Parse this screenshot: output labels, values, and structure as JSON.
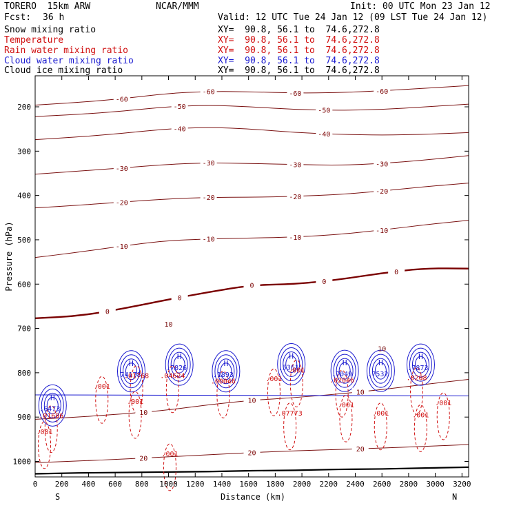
{
  "header": {
    "model": "TORERO  15km ARW",
    "org": "NCAR/MMM",
    "init": "Init: 00 UTC Mon 23 Jan 12",
    "fcst_label": "Fcst:",
    "fcst_value": "36 h",
    "valid": "Valid: 12 UTC Tue 24 Jan 12 (09 LST Tue 24 Jan 12)"
  },
  "legend": [
    {
      "name": "Snow mixing ratio",
      "xy": "XY=  90.8, 56.1 to  74.6,272.8",
      "color": "#000000"
    },
    {
      "name": "Temperature",
      "xy": "XY=  90.8, 56.1 to  74.6,272.8",
      "color": "#d01010"
    },
    {
      "name": "Rain water mixing ratio",
      "xy": "XY=  90.8, 56.1 to  74.6,272.8",
      "color": "#d01010"
    },
    {
      "name": "Cloud water mixing ratio",
      "xy": "XY=  90.8, 56.1 to  74.6,272.8",
      "color": "#1a1ad0"
    },
    {
      "name": "Cloud ice mixing ratio",
      "xy": "XY=  90.8, 56.1 to  74.6,272.8",
      "color": "#000000"
    }
  ],
  "chart_data": {
    "type": "cross-section contour",
    "xlabel": "Distance (km)",
    "ylabel": "Pressure (hPa)",
    "x_ticks": [
      0,
      200,
      400,
      600,
      800,
      1000,
      1200,
      1400,
      1600,
      1800,
      2000,
      2200,
      2400,
      2600,
      2800,
      3000,
      3200
    ],
    "y_ticks": [
      200,
      300,
      400,
      500,
      600,
      700,
      800,
      900,
      1000
    ],
    "xlim": [
      0,
      3250
    ],
    "ylim": [
      1035,
      130
    ],
    "left_endpoint": "S",
    "right_endpoint": "N",
    "temperature_contours": [
      {
        "value": -60,
        "pressures": [
          196,
          190,
          182,
          170,
          165,
          166,
          169,
          168,
          164,
          158,
          152
        ],
        "labels": [
          "-60",
          "-60",
          "-60",
          "-60"
        ]
      },
      {
        "value": -50,
        "pressures": [
          222,
          217,
          210,
          200,
          196,
          200,
          206,
          208,
          206,
          200,
          194
        ],
        "labels": [
          "-50",
          "-50"
        ]
      },
      {
        "value": -40,
        "pressures": [
          274,
          268,
          260,
          250,
          246,
          250,
          258,
          262,
          264,
          262,
          258
        ],
        "labels": [
          "-40",
          "-40"
        ]
      },
      {
        "value": -30,
        "pressures": [
          352,
          345,
          338,
          330,
          326,
          328,
          330,
          332,
          328,
          320,
          310
        ],
        "labels": [
          "-30",
          "-30",
          "-30",
          "-30"
        ]
      },
      {
        "value": -20,
        "pressures": [
          428,
          422,
          415,
          408,
          404,
          404,
          402,
          398,
          390,
          380,
          372
        ],
        "labels": [
          "-20",
          "-20",
          "-20",
          "-20"
        ]
      },
      {
        "value": -10,
        "pressures": [
          540,
          528,
          514,
          502,
          498,
          496,
          494,
          488,
          478,
          466,
          456
        ],
        "labels": [
          "-10",
          "-10",
          "-10",
          "-10"
        ]
      },
      {
        "value": 0,
        "pressures": [
          677,
          672,
          656,
          636,
          618,
          602,
          600,
          590,
          575,
          564,
          565
        ],
        "labels": [
          "0",
          "0",
          "0",
          "0",
          "0"
        ]
      },
      {
        "value": 10,
        "pressures": [
          905,
          900,
          893,
          885,
          872,
          862,
          856,
          848,
          838,
          826,
          815
        ],
        "labels": [
          "10",
          "10",
          "10"
        ]
      },
      {
        "value": 20,
        "pressures": [
          1003,
          999,
          995,
          990,
          985,
          980,
          976,
          973,
          970,
          966,
          962
        ],
        "labels": [
          "20",
          "20",
          "20"
        ]
      }
    ],
    "cloud_water_labels": [
      {
        "text": ".6473",
        "x": 110,
        "p": 880
      },
      {
        "text": ".74178",
        "x": 700,
        "p": 803
      },
      {
        "text": ".7826",
        "x": 1060,
        "p": 788
      },
      {
        "text": ".1893",
        "x": 1410,
        "p": 803
      },
      {
        "text": ".5361",
        "x": 1900,
        "p": 787
      },
      {
        "text": ".7049",
        "x": 2300,
        "p": 802
      },
      {
        "text": ".7532",
        "x": 2570,
        "p": 802
      },
      {
        "text": ".7873",
        "x": 2870,
        "p": 788
      }
    ],
    "rain_labels": [
      {
        "text": ".01696",
        "x": 120,
        "p": 896
      },
      {
        "text": ".001",
        "x": 500,
        "p": 830
      },
      {
        "text": ".01768",
        "x": 760,
        "p": 806
      },
      {
        "text": ".001",
        "x": 750,
        "p": 864
      },
      {
        "text": ".04624",
        "x": 1030,
        "p": 806
      },
      {
        "text": ".00046",
        "x": 1410,
        "p": 818
      },
      {
        "text": ".001",
        "x": 1790,
        "p": 813
      },
      {
        "text": ".001",
        "x": 1960,
        "p": 793
      },
      {
        "text": ".07773",
        "x": 1910,
        "p": 890
      },
      {
        "text": ".02046",
        "x": 2300,
        "p": 816
      },
      {
        "text": ".001",
        "x": 2330,
        "p": 872
      },
      {
        "text": ".001",
        "x": 2590,
        "p": 890
      },
      {
        "text": ".0208",
        "x": 2860,
        "p": 810
      },
      {
        "text": ".001",
        "x": 2890,
        "p": 894
      },
      {
        "text": ".001",
        "x": 3060,
        "p": 867
      },
      {
        "text": ".001",
        "x": 1010,
        "p": 982
      },
      {
        "text": ".001",
        "x": 70,
        "p": 932
      }
    ],
    "rain_labels_extra": [
      "10",
      "10"
    ],
    "max_markers": "H",
    "surface_line": {
      "pressures": [
        1028,
        1026,
        1025,
        1024,
        1023,
        1021,
        1020,
        1018,
        1017,
        1015,
        1013
      ]
    }
  }
}
